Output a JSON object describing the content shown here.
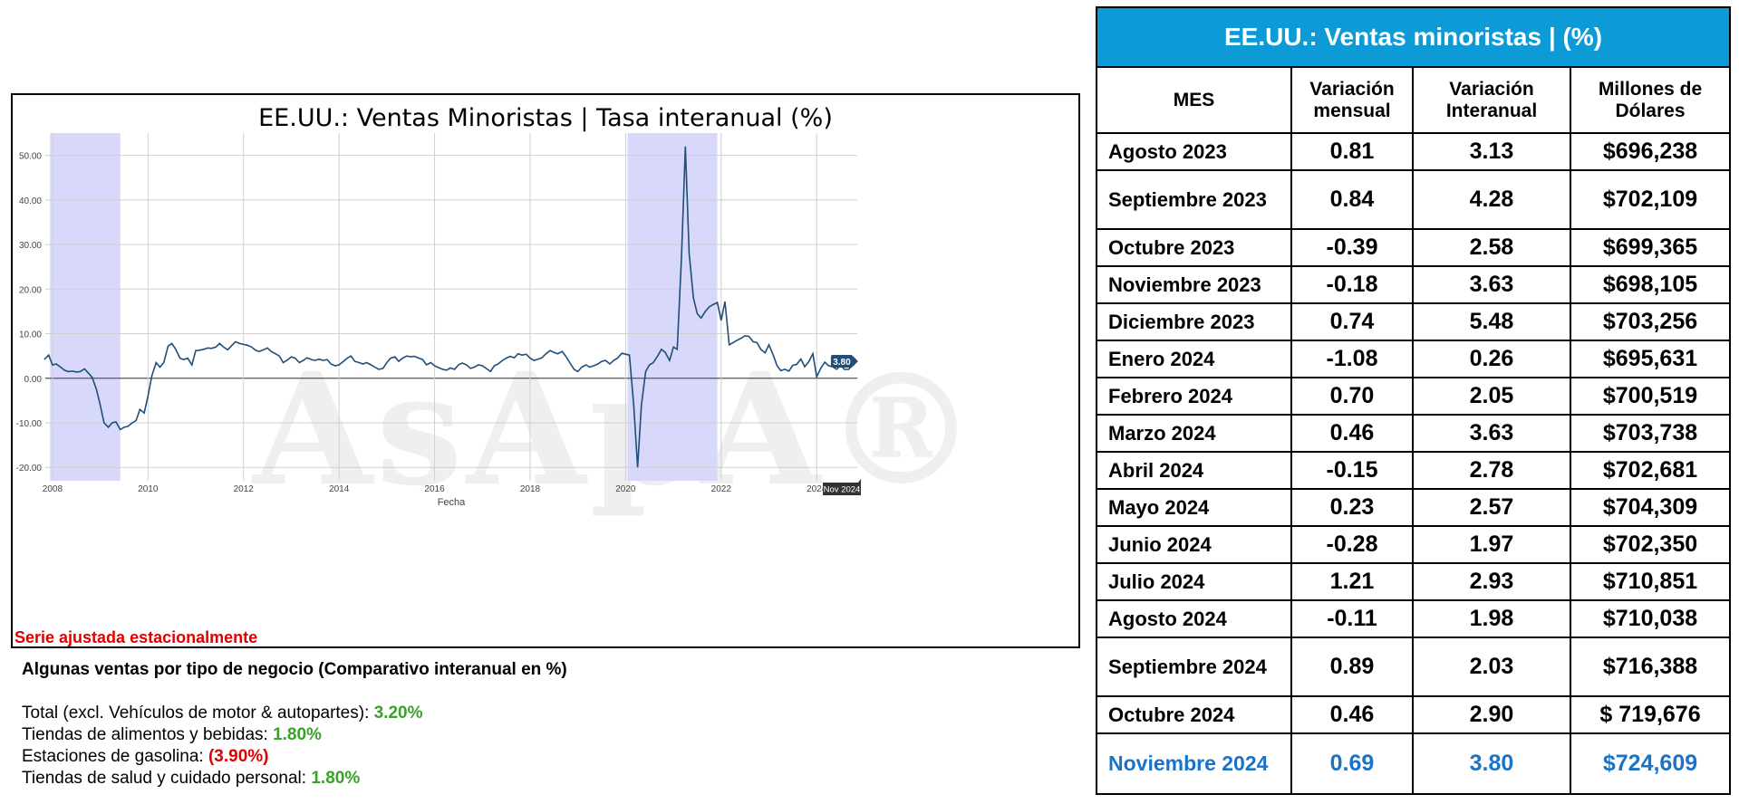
{
  "chart_panel": {
    "note": "Serie ajustada estacionalmente",
    "watermark": "AsApA®"
  },
  "chart_data": {
    "type": "line",
    "title": "EE.UU.: Ventas Minoristas | Tasa interanual (%)",
    "xlabel": "Fecha",
    "ylabel": "",
    "ylim": [
      -23,
      55
    ],
    "xlim": [
      2007.85,
      2024.85
    ],
    "yticks": [
      "50.00",
      "40.00",
      "30.00",
      "20.00",
      "10.00",
      "0.00",
      "-10.00",
      "-20.00"
    ],
    "ytick_values": [
      50,
      40,
      30,
      20,
      10,
      0,
      -10,
      -20
    ],
    "xticks": [
      "2008",
      "2010",
      "2012",
      "2014",
      "2016",
      "2018",
      "2020",
      "2022",
      "2024"
    ],
    "xtick_values": [
      2008,
      2010,
      2012,
      2014,
      2016,
      2018,
      2020,
      2022,
      2024
    ],
    "grid": true,
    "line_color": "#1f4e79",
    "recession_color": "#d8d8fb",
    "recessions": [
      [
        2007.95,
        2009.42
      ],
      [
        2020.04,
        2021.92
      ]
    ],
    "last_label": "3.80",
    "end_label": "Nov 2024",
    "series": [
      {
        "points": [
          [
            2007.83,
            4.2
          ],
          [
            2007.92,
            5.2
          ],
          [
            2008.0,
            3.0
          ],
          [
            2008.08,
            3.2
          ],
          [
            2008.17,
            2.5
          ],
          [
            2008.25,
            1.8
          ],
          [
            2008.33,
            1.5
          ],
          [
            2008.42,
            1.6
          ],
          [
            2008.5,
            1.4
          ],
          [
            2008.58,
            1.5
          ],
          [
            2008.67,
            2.1
          ],
          [
            2008.75,
            1.2
          ],
          [
            2008.83,
            0.2
          ],
          [
            2008.92,
            -2.5
          ],
          [
            2009.0,
            -6.0
          ],
          [
            2009.08,
            -10.0
          ],
          [
            2009.17,
            -11.0
          ],
          [
            2009.25,
            -10.0
          ],
          [
            2009.33,
            -9.8
          ],
          [
            2009.42,
            -11.5
          ],
          [
            2009.5,
            -11.0
          ],
          [
            2009.58,
            -10.8
          ],
          [
            2009.67,
            -10.0
          ],
          [
            2009.75,
            -9.5
          ],
          [
            2009.83,
            -7.0
          ],
          [
            2009.92,
            -7.8
          ],
          [
            2010.0,
            -4.0
          ],
          [
            2010.08,
            0.5
          ],
          [
            2010.17,
            3.5
          ],
          [
            2010.25,
            2.5
          ],
          [
            2010.33,
            3.5
          ],
          [
            2010.42,
            7.2
          ],
          [
            2010.5,
            7.8
          ],
          [
            2010.58,
            6.5
          ],
          [
            2010.67,
            4.5
          ],
          [
            2010.75,
            4.2
          ],
          [
            2010.83,
            4.5
          ],
          [
            2010.92,
            3.0
          ],
          [
            2011.0,
            6.2
          ],
          [
            2011.08,
            6.3
          ],
          [
            2011.17,
            6.5
          ],
          [
            2011.25,
            6.8
          ],
          [
            2011.33,
            6.7
          ],
          [
            2011.42,
            7.0
          ],
          [
            2011.5,
            7.8
          ],
          [
            2011.58,
            7.0
          ],
          [
            2011.67,
            6.4
          ],
          [
            2011.75,
            7.3
          ],
          [
            2011.83,
            8.2
          ],
          [
            2011.92,
            7.8
          ],
          [
            2012.0,
            7.6
          ],
          [
            2012.08,
            7.4
          ],
          [
            2012.17,
            7.0
          ],
          [
            2012.25,
            6.3
          ],
          [
            2012.33,
            6.0
          ],
          [
            2012.42,
            6.4
          ],
          [
            2012.5,
            6.8
          ],
          [
            2012.58,
            6.0
          ],
          [
            2012.67,
            5.5
          ],
          [
            2012.75,
            5.0
          ],
          [
            2012.83,
            3.5
          ],
          [
            2012.92,
            4.1
          ],
          [
            2013.0,
            4.8
          ],
          [
            2013.08,
            4.5
          ],
          [
            2013.17,
            3.5
          ],
          [
            2013.25,
            4.0
          ],
          [
            2013.33,
            4.6
          ],
          [
            2013.42,
            4.2
          ],
          [
            2013.5,
            4.0
          ],
          [
            2013.58,
            4.3
          ],
          [
            2013.67,
            4.0
          ],
          [
            2013.75,
            4.2
          ],
          [
            2013.83,
            3.2
          ],
          [
            2013.92,
            2.8
          ],
          [
            2014.0,
            3.0
          ],
          [
            2014.08,
            3.7
          ],
          [
            2014.17,
            4.5
          ],
          [
            2014.25,
            5.0
          ],
          [
            2014.33,
            3.8
          ],
          [
            2014.42,
            3.5
          ],
          [
            2014.5,
            3.2
          ],
          [
            2014.58,
            3.5
          ],
          [
            2014.67,
            3.0
          ],
          [
            2014.75,
            2.5
          ],
          [
            2014.83,
            2.0
          ],
          [
            2014.92,
            2.2
          ],
          [
            2015.0,
            3.5
          ],
          [
            2015.08,
            4.5
          ],
          [
            2015.17,
            4.8
          ],
          [
            2015.25,
            3.8
          ],
          [
            2015.33,
            4.5
          ],
          [
            2015.42,
            5.0
          ],
          [
            2015.5,
            4.8
          ],
          [
            2015.58,
            4.9
          ],
          [
            2015.67,
            4.5
          ],
          [
            2015.75,
            4.2
          ],
          [
            2015.83,
            3.0
          ],
          [
            2015.92,
            3.5
          ],
          [
            2016.0,
            2.8
          ],
          [
            2016.08,
            2.4
          ],
          [
            2016.17,
            2.0
          ],
          [
            2016.25,
            1.8
          ],
          [
            2016.33,
            2.3
          ],
          [
            2016.42,
            2.0
          ],
          [
            2016.5,
            3.0
          ],
          [
            2016.58,
            3.4
          ],
          [
            2016.67,
            3.0
          ],
          [
            2016.75,
            2.2
          ],
          [
            2016.83,
            2.5
          ],
          [
            2016.92,
            3.0
          ],
          [
            2017.0,
            2.8
          ],
          [
            2017.08,
            2.2
          ],
          [
            2017.17,
            1.5
          ],
          [
            2017.25,
            2.8
          ],
          [
            2017.33,
            3.2
          ],
          [
            2017.42,
            4.0
          ],
          [
            2017.5,
            4.5
          ],
          [
            2017.58,
            4.9
          ],
          [
            2017.67,
            4.6
          ],
          [
            2017.75,
            5.5
          ],
          [
            2017.83,
            5.2
          ],
          [
            2017.92,
            5.4
          ],
          [
            2018.0,
            4.5
          ],
          [
            2018.08,
            4.0
          ],
          [
            2018.17,
            4.3
          ],
          [
            2018.25,
            4.6
          ],
          [
            2018.33,
            5.5
          ],
          [
            2018.42,
            6.2
          ],
          [
            2018.5,
            5.8
          ],
          [
            2018.58,
            5.5
          ],
          [
            2018.67,
            6.0
          ],
          [
            2018.75,
            4.9
          ],
          [
            2018.83,
            3.5
          ],
          [
            2018.92,
            2.0
          ],
          [
            2019.0,
            1.5
          ],
          [
            2019.08,
            2.5
          ],
          [
            2019.17,
            3.0
          ],
          [
            2019.25,
            2.5
          ],
          [
            2019.33,
            2.8
          ],
          [
            2019.42,
            3.2
          ],
          [
            2019.5,
            3.8
          ],
          [
            2019.58,
            4.0
          ],
          [
            2019.67,
            3.2
          ],
          [
            2019.75,
            4.0
          ],
          [
            2019.83,
            4.5
          ],
          [
            2019.92,
            5.6
          ],
          [
            2020.0,
            5.4
          ],
          [
            2020.08,
            5.2
          ],
          [
            2020.17,
            -6.0
          ],
          [
            2020.25,
            -20.0
          ],
          [
            2020.33,
            -6.0
          ],
          [
            2020.42,
            1.5
          ],
          [
            2020.5,
            3.0
          ],
          [
            2020.58,
            3.5
          ],
          [
            2020.67,
            5.0
          ],
          [
            2020.75,
            6.5
          ],
          [
            2020.83,
            5.8
          ],
          [
            2020.92,
            4.0
          ],
          [
            2021.0,
            7.0
          ],
          [
            2021.08,
            6.5
          ],
          [
            2021.17,
            27.0
          ],
          [
            2021.25,
            52.0
          ],
          [
            2021.33,
            28.0
          ],
          [
            2021.42,
            18.0
          ],
          [
            2021.5,
            14.5
          ],
          [
            2021.58,
            13.5
          ],
          [
            2021.67,
            15.0
          ],
          [
            2021.75,
            16.0
          ],
          [
            2021.83,
            16.5
          ],
          [
            2021.92,
            17.0
          ],
          [
            2022.0,
            13.0
          ],
          [
            2022.08,
            17.2
          ],
          [
            2022.17,
            7.5
          ],
          [
            2022.25,
            8.0
          ],
          [
            2022.33,
            8.5
          ],
          [
            2022.42,
            9.0
          ],
          [
            2022.5,
            9.5
          ],
          [
            2022.58,
            9.4
          ],
          [
            2022.67,
            8.2
          ],
          [
            2022.75,
            8.0
          ],
          [
            2022.83,
            6.5
          ],
          [
            2022.92,
            5.7
          ],
          [
            2023.0,
            7.5
          ],
          [
            2023.08,
            5.5
          ],
          [
            2023.17,
            2.8
          ],
          [
            2023.25,
            1.7
          ],
          [
            2023.33,
            2.0
          ],
          [
            2023.42,
            1.6
          ],
          [
            2023.5,
            2.9
          ],
          [
            2023.58,
            3.1
          ],
          [
            2023.67,
            4.3
          ],
          [
            2023.75,
            2.6
          ],
          [
            2023.83,
            3.6
          ],
          [
            2023.92,
            5.5
          ],
          [
            2024.0,
            0.3
          ],
          [
            2024.08,
            2.1
          ],
          [
            2024.17,
            3.6
          ],
          [
            2024.25,
            2.8
          ],
          [
            2024.33,
            2.6
          ],
          [
            2024.42,
            2.0
          ],
          [
            2024.5,
            2.9
          ],
          [
            2024.58,
            2.0
          ],
          [
            2024.67,
            2.0
          ],
          [
            2024.75,
            2.9
          ],
          [
            2024.83,
            3.8
          ]
        ]
      }
    ]
  },
  "breakdown": {
    "title": "Algunas ventas por tipo de negocio (Comparativo interanual en %)",
    "items": [
      {
        "label": "Total (excl. Vehículos de motor & autopartes): ",
        "value": "3.20%",
        "status": "pos"
      },
      {
        "label": "Tiendas de alimentos y bebidas: ",
        "value": "1.80%",
        "status": "pos"
      },
      {
        "label": "Estaciones de gasolina: ",
        "value": "(3.90%)",
        "status": "neg"
      },
      {
        "label": "Tiendas de salud y cuidado personal: ",
        "value": "1.80%",
        "status": "pos"
      }
    ]
  },
  "table": {
    "title": "EE.UU.: Ventas minoristas | (%)",
    "header_color": "#0d9bd8",
    "highlight_color": "#1a73c7",
    "columns": [
      {
        "line1": "MES",
        "line2": ""
      },
      {
        "line1": "Variación",
        "line2": "mensual"
      },
      {
        "line1": "Variación",
        "line2": "Interanual"
      },
      {
        "line1": "Millones de",
        "line2": "Dólares"
      }
    ],
    "rows": [
      {
        "mes": "Agosto 2023",
        "mensual": "0.81",
        "interanual": "3.13",
        "millones": "$696,238"
      },
      {
        "mes": "Septiembre 2023",
        "mensual": "0.84",
        "interanual": "4.28",
        "millones": "$702,109"
      },
      {
        "mes": "Octubre 2023",
        "mensual": "-0.39",
        "interanual": "2.58",
        "millones": "$699,365"
      },
      {
        "mes": "Noviembre 2023",
        "mensual": "-0.18",
        "interanual": "3.63",
        "millones": "$698,105"
      },
      {
        "mes": "Diciembre 2023",
        "mensual": "0.74",
        "interanual": "5.48",
        "millones": "$703,256"
      },
      {
        "mes": "Enero 2024",
        "mensual": "-1.08",
        "interanual": "0.26",
        "millones": "$695,631"
      },
      {
        "mes": "Febrero 2024",
        "mensual": "0.70",
        "interanual": "2.05",
        "millones": "$700,519"
      },
      {
        "mes": "Marzo 2024",
        "mensual": "0.46",
        "interanual": "3.63",
        "millones": "$703,738"
      },
      {
        "mes": "Abril 2024",
        "mensual": "-0.15",
        "interanual": "2.78",
        "millones": "$702,681"
      },
      {
        "mes": "Mayo 2024",
        "mensual": "0.23",
        "interanual": "2.57",
        "millones": "$704,309"
      },
      {
        "mes": "Junio 2024",
        "mensual": "-0.28",
        "interanual": "1.97",
        "millones": "$702,350"
      },
      {
        "mes": "Julio 2024",
        "mensual": "1.21",
        "interanual": "2.93",
        "millones": "$710,851"
      },
      {
        "mes": "Agosto 2024",
        "mensual": "-0.11",
        "interanual": "1.98",
        "millones": "$710,038"
      },
      {
        "mes": "Septiembre 2024",
        "mensual": "0.89",
        "interanual": "2.03",
        "millones": "$716,388"
      },
      {
        "mes": "Octubre  2024",
        "mensual": "0.46",
        "interanual": "2.90",
        "millones": "$ 719,676"
      },
      {
        "mes": "Noviembre 2024",
        "mensual": "0.69",
        "interanual": "3.80",
        "millones": "$724,609",
        "highlight": true
      }
    ]
  }
}
